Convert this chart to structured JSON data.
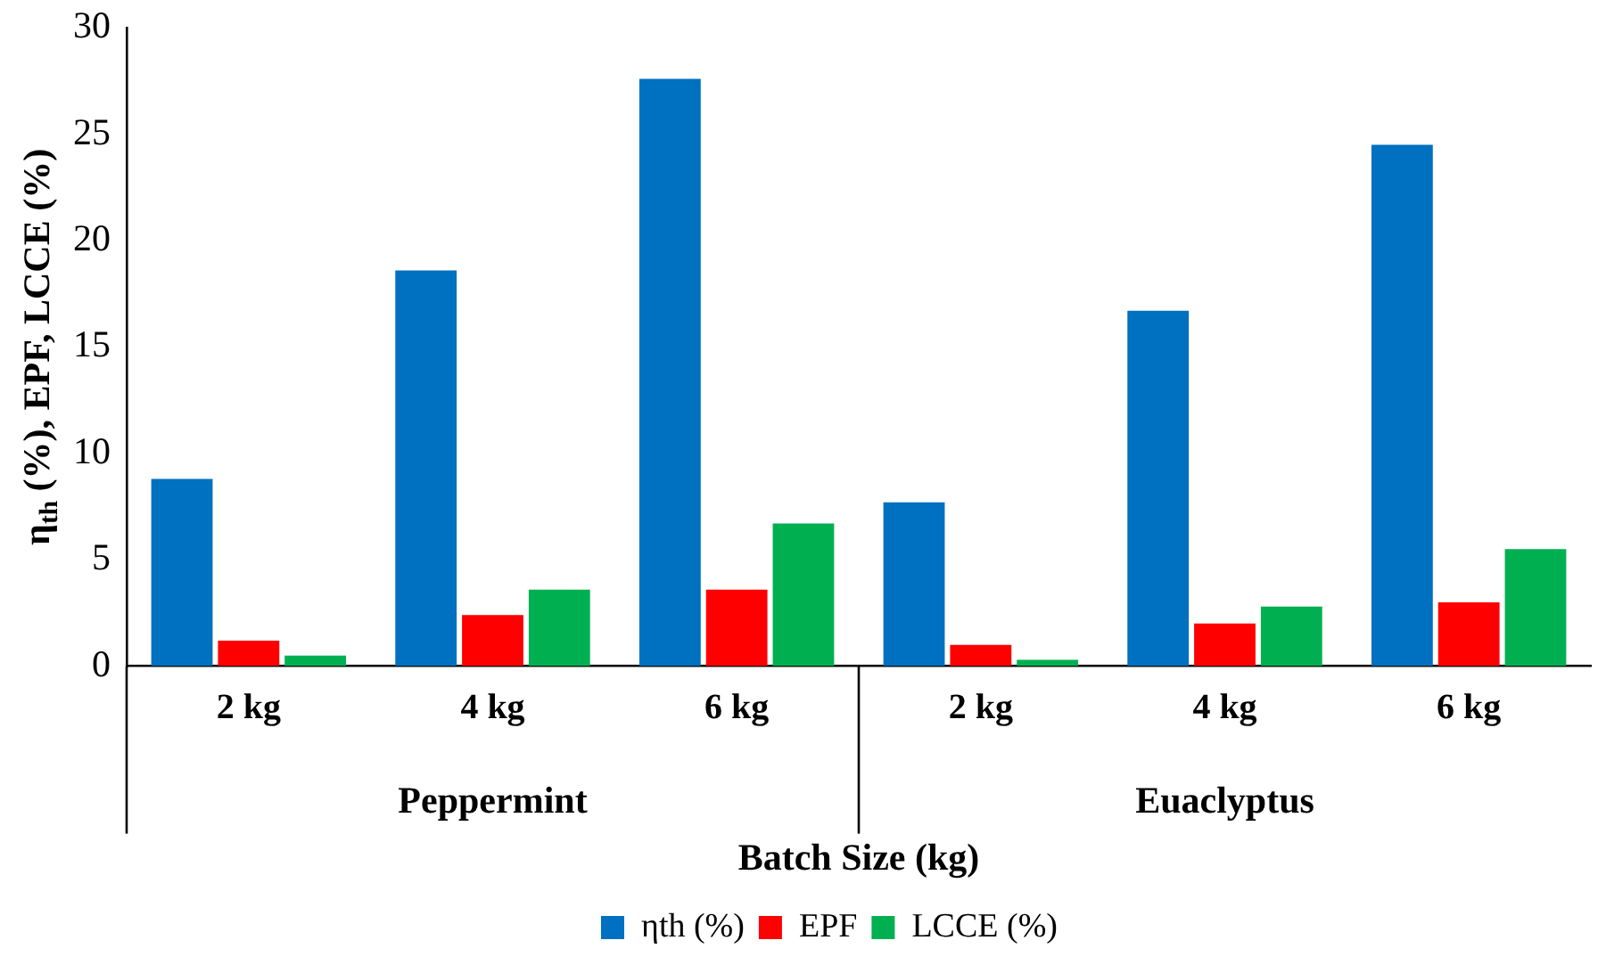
{
  "chart_data": {
    "type": "bar",
    "xlabel": "Batch Size (kg)",
    "ylabel": "η$_{th}$ (%), EPF, LCCE (%)",
    "categories": [
      "2 kg",
      "4 kg",
      "6 kg",
      "2 kg",
      "4 kg",
      "6 kg"
    ],
    "annotations": [
      "Peppermint",
      "Euaclyptus"
    ],
    "series": [
      {
        "name": "ηth (%)",
        "color": "#0070c0",
        "values": [
          8.8,
          18.6,
          27.6,
          7.7,
          16.7,
          24.5
        ]
      },
      {
        "name": "EPF",
        "color": "#ff0000",
        "values": [
          1.2,
          2.4,
          3.6,
          1.0,
          2.0,
          3.0
        ]
      },
      {
        "name": "LCCE (%)",
        "color": "#00b050",
        "values": [
          0.5,
          3.6,
          6.7,
          0.3,
          2.8,
          5.5
        ]
      }
    ],
    "ylim": [
      0,
      30
    ],
    "yticks": [
      0,
      5,
      10,
      15,
      20,
      25,
      30
    ],
    "grid": false,
    "legend": "bottom"
  }
}
